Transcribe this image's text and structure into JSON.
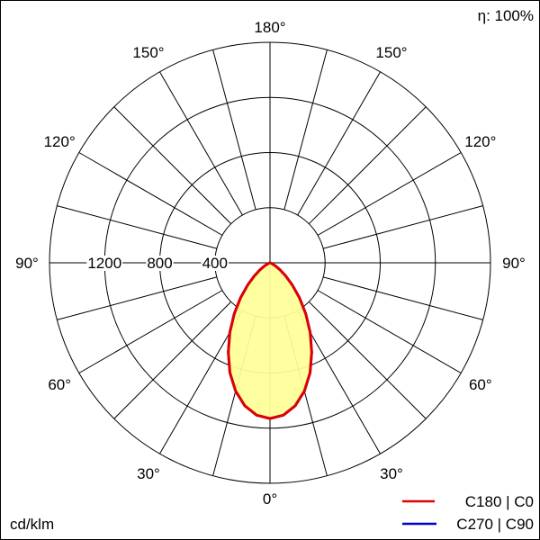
{
  "chart_data": {
    "type": "polar",
    "efficiency_label": "η: 100%",
    "unit_label": "cd/klm",
    "radial_ticks": [
      400,
      800,
      1200
    ],
    "radial_max": 1600,
    "angle_labels": [
      "0°",
      "30°",
      "60°",
      "90°",
      "120°",
      "150°",
      "180°"
    ],
    "angle_step_deg": 15,
    "grid": true,
    "legend_position": "bottom-right",
    "fill_color": "#ffff99",
    "series": [
      {
        "name": "C180 | C0",
        "color": "#e00000",
        "angles": [
          0,
          5,
          10,
          15,
          20,
          25,
          30,
          35,
          40,
          45,
          50,
          55,
          60,
          70,
          80,
          90
        ],
        "values": [
          1130,
          1110,
          1053,
          963,
          849,
          716,
          583,
          452,
          332,
          229,
          148,
          88,
          47,
          8,
          0,
          0
        ]
      },
      {
        "name": "C270 | C90",
        "color": "#0000cc",
        "angles": [
          0,
          5,
          10,
          15,
          20,
          25,
          30,
          35,
          40,
          45,
          50,
          55,
          60,
          70,
          80,
          90
        ],
        "values": [
          1130,
          1110,
          1053,
          963,
          849,
          716,
          583,
          452,
          332,
          229,
          148,
          88,
          47,
          8,
          0,
          0
        ]
      }
    ]
  }
}
